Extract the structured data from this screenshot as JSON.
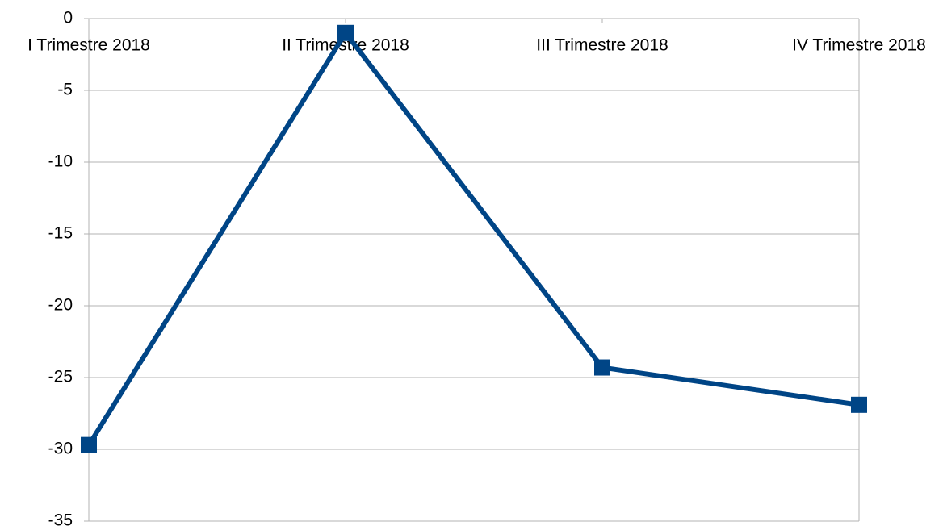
{
  "chart_data": {
    "type": "line",
    "categories": [
      "I Trimestre 2018",
      "II Trimestre 2018",
      "III Trimestre 2018",
      "IV Trimestre 2018"
    ],
    "series": [
      {
        "color": "#004586",
        "values": [
          -29.7,
          -1.0,
          -24.3,
          -26.9
        ]
      }
    ],
    "ylim": [
      -35,
      0
    ],
    "yticks": [
      0,
      -5,
      -10,
      -15,
      -20,
      -25,
      -30,
      -35
    ],
    "grid": true
  }
}
